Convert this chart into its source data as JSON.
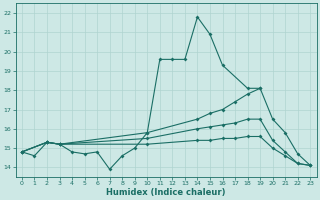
{
  "xlabel": "Humidex (Indice chaleur)",
  "xlim": [
    -0.5,
    23.5
  ],
  "ylim": [
    13.5,
    22.5
  ],
  "yticks": [
    14,
    15,
    16,
    17,
    18,
    19,
    20,
    21,
    22
  ],
  "xticks": [
    0,
    1,
    2,
    3,
    4,
    5,
    6,
    7,
    8,
    9,
    10,
    11,
    12,
    13,
    14,
    15,
    16,
    17,
    18,
    19,
    20,
    21,
    22,
    23
  ],
  "background_color": "#cde8e5",
  "grid_color": "#b0d4d0",
  "line_color": "#1a6e65",
  "line1_x": [
    0,
    1,
    2,
    3,
    4,
    5,
    6,
    7,
    8,
    9,
    10,
    11,
    12,
    13,
    14,
    15,
    16,
    18,
    19
  ],
  "line1_y": [
    14.8,
    14.6,
    15.3,
    15.2,
    14.8,
    14.7,
    14.8,
    13.9,
    14.6,
    15.0,
    15.8,
    19.6,
    19.6,
    19.6,
    21.8,
    20.9,
    19.3,
    18.1,
    18.1
  ],
  "line2_x": [
    0,
    2,
    3,
    10,
    14,
    15,
    16,
    17,
    18,
    19,
    20,
    21,
    22,
    23
  ],
  "line2_y": [
    14.8,
    15.3,
    15.2,
    15.8,
    16.5,
    16.8,
    17.0,
    17.4,
    17.8,
    18.1,
    16.5,
    15.8,
    14.7,
    14.1
  ],
  "line3_x": [
    0,
    2,
    3,
    10,
    14,
    15,
    16,
    17,
    18,
    19,
    20,
    21,
    22,
    23
  ],
  "line3_y": [
    14.8,
    15.3,
    15.2,
    15.5,
    16.0,
    16.1,
    16.2,
    16.3,
    16.5,
    16.5,
    15.4,
    14.8,
    14.2,
    14.1
  ],
  "line4_x": [
    0,
    2,
    3,
    10,
    14,
    15,
    16,
    17,
    18,
    19,
    20,
    21,
    22,
    23
  ],
  "line4_y": [
    14.8,
    15.3,
    15.2,
    15.2,
    15.4,
    15.4,
    15.5,
    15.5,
    15.6,
    15.6,
    15.0,
    14.6,
    14.2,
    14.1
  ]
}
